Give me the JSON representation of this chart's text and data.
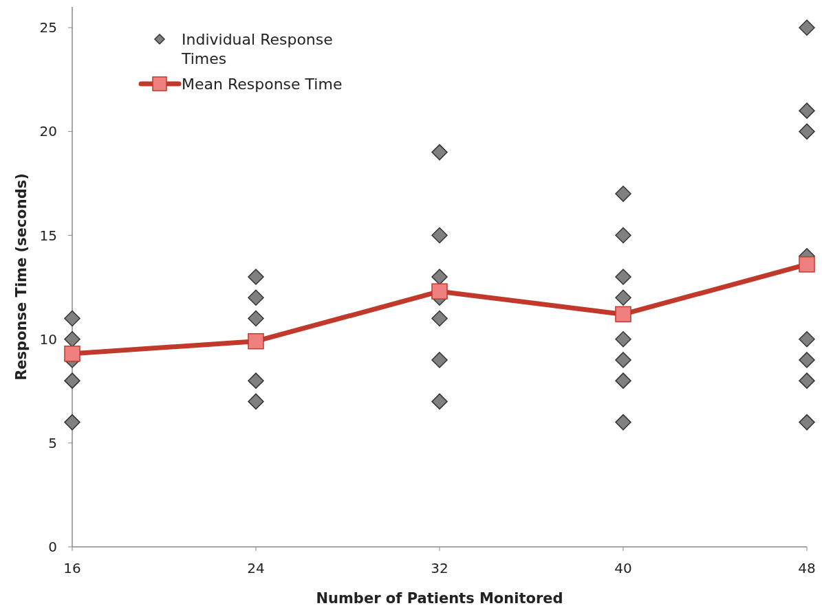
{
  "chart_data": {
    "type": "scatter",
    "xlabel": "Number of Patients Monitored",
    "ylabel": "Response Time (seconds)",
    "xlim": [
      16,
      48
    ],
    "xticks": [
      16,
      24,
      32,
      40,
      48
    ],
    "ylim": [
      0,
      26
    ],
    "yticks": [
      0,
      5,
      10,
      15,
      20,
      25
    ],
    "grid": false,
    "legend": "top left",
    "series": [
      {
        "name": "Individual Response Times",
        "marker": "diamond",
        "color": "#808080",
        "x": [
          16,
          16,
          16,
          16,
          16,
          24,
          24,
          24,
          24,
          24,
          32,
          32,
          32,
          32,
          32,
          32,
          32,
          40,
          40,
          40,
          40,
          40,
          40,
          40,
          40,
          48,
          48,
          48,
          48,
          48,
          48,
          48,
          48
        ],
        "values": [
          11,
          10,
          9,
          8,
          6,
          13,
          12,
          11,
          8,
          7,
          19,
          15,
          13,
          12,
          11,
          9,
          7,
          17,
          15,
          13,
          12,
          10,
          9,
          8,
          6,
          25,
          21,
          20,
          14,
          10,
          9,
          8,
          6
        ]
      },
      {
        "name": "Mean Response Time",
        "type": "line",
        "marker": "square",
        "color": "#c0392b",
        "x": [
          16,
          24,
          32,
          40,
          48
        ],
        "values": [
          9.3,
          9.9,
          12.3,
          11.2,
          13.6
        ]
      }
    ]
  }
}
